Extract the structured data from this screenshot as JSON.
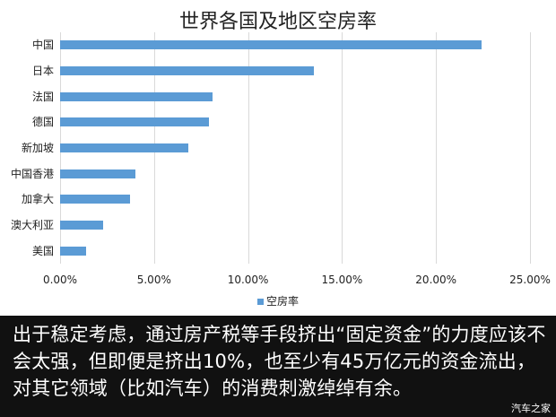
{
  "chart_data": {
    "type": "bar",
    "orientation": "horizontal",
    "title": "世界各国及地区空房率",
    "categories": [
      "中国",
      "日本",
      "法国",
      "德国",
      "新加坡",
      "中国香港",
      "加拿大",
      "澳大利亚",
      "美国"
    ],
    "series": [
      {
        "name": "空房率",
        "values": [
          22.4,
          13.5,
          8.1,
          7.9,
          6.8,
          4.0,
          3.7,
          2.3,
          1.4
        ],
        "color": "#5b9bd5"
      }
    ],
    "xlabel": "",
    "ylabel": "",
    "xlim": [
      0,
      25
    ],
    "x_ticks": [
      "0.00%",
      "5.00%",
      "10.00%",
      "15.00%",
      "20.00%",
      "25.00%"
    ],
    "grid": true,
    "legend_position": "bottom"
  },
  "caption": {
    "text": "出于稳定考虑，通过房产税等手段挤出“固定资金”的力度应该不会太强，但即便是挤出10%，也至少有45万亿元的资金流出，对其它领域（比如汽车）的消费刺激绰绰有余。"
  },
  "watermark": "汽车之家"
}
